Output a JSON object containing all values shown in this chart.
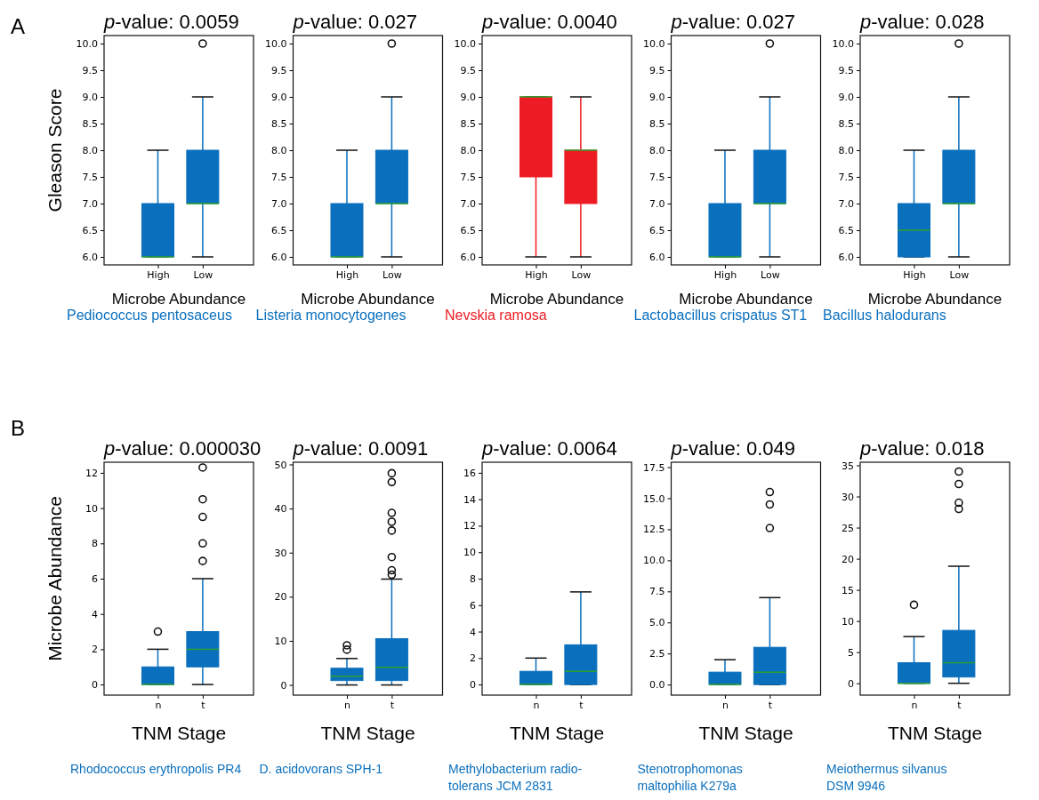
{
  "chart_data": [
    {
      "type": "box",
      "title": "p-value: 0.0059",
      "subtitle": "Pediococcus pentosaceus",
      "xlabel": "Microbe Abundance",
      "ylabel": "Gleason Score",
      "annotations": [
        "A"
      ],
      "categories": [
        "High",
        "Low"
      ],
      "ylim": [
        5.85,
        10.15
      ],
      "yticks": [
        {
          "value": 6,
          "label": "6.0"
        },
        {
          "value": 6.5,
          "label": "6.5"
        },
        {
          "value": 7,
          "label": "7.0"
        },
        {
          "value": 7.5,
          "label": "7.5"
        },
        {
          "value": 8,
          "label": "8.0"
        },
        {
          "value": 8.5,
          "label": "8.5"
        },
        {
          "value": 9,
          "label": "9.0"
        },
        {
          "value": 9.5,
          "label": "9.5"
        },
        {
          "value": 10,
          "label": "10.0"
        }
      ],
      "series": [
        {
          "color": "#0a6fbd",
          "boxes": [
            {
              "low": 6,
              "q1": 6,
              "median": 6,
              "q3": 7,
              "high": 8
            },
            {
              "low": 6,
              "q1": 7,
              "median": 7,
              "q3": 8,
              "high": 9,
              "outliers": [
                10
              ]
            }
          ]
        }
      ]
    },
    {
      "type": "box",
      "title": "p-value: 0.027",
      "subtitle": "Listeria monocytogenes",
      "xlabel": "Microbe Abundance",
      "categories": [
        "High",
        "Low"
      ],
      "ylim": [
        5.85,
        10.15
      ],
      "yticks": [
        {
          "value": 6,
          "label": "6.0"
        },
        {
          "value": 6.5,
          "label": "6.5"
        },
        {
          "value": 7,
          "label": "7.0"
        },
        {
          "value": 7.5,
          "label": "7.5"
        },
        {
          "value": 8,
          "label": "8.0"
        },
        {
          "value": 8.5,
          "label": "8.5"
        },
        {
          "value": 9,
          "label": "9.0"
        },
        {
          "value": 9.5,
          "label": "9.5"
        },
        {
          "value": 10,
          "label": "10.0"
        }
      ],
      "series": [
        {
          "color": "#0a6fbd",
          "boxes": [
            {
              "low": 6,
              "q1": 6,
              "median": 6,
              "q3": 7,
              "high": 8
            },
            {
              "low": 6,
              "q1": 7,
              "median": 7,
              "q3": 8,
              "high": 9,
              "outliers": [
                10
              ]
            }
          ]
        }
      ]
    },
    {
      "type": "box",
      "title": "p-value: 0.0040",
      "subtitle": "Nevskia ramosa",
      "xlabel": "Microbe Abundance",
      "categories": [
        "High",
        "Low"
      ],
      "ylim": [
        5.85,
        10.15
      ],
      "yticks": [
        {
          "value": 6,
          "label": "6.0"
        },
        {
          "value": 6.5,
          "label": "6.5"
        },
        {
          "value": 7,
          "label": "7.0"
        },
        {
          "value": 7.5,
          "label": "7.5"
        },
        {
          "value": 8,
          "label": "8.0"
        },
        {
          "value": 8.5,
          "label": "8.5"
        },
        {
          "value": 9,
          "label": "9.0"
        },
        {
          "value": 9.5,
          "label": "9.5"
        },
        {
          "value": 10,
          "label": "10.0"
        }
      ],
      "series": [
        {
          "color": "#ed1c24",
          "boxes": [
            {
              "low": 6,
              "q1": 7.5,
              "median": 9,
              "q3": 9,
              "high": 9
            },
            {
              "low": 6,
              "q1": 7,
              "median": 8,
              "q3": 8,
              "high": 9
            }
          ]
        }
      ]
    },
    {
      "type": "box",
      "title": "p-value: 0.027",
      "subtitle": "Lactobacillus crispatus ST1",
      "xlabel": "Microbe Abundance",
      "categories": [
        "High",
        "Low"
      ],
      "ylim": [
        5.85,
        10.15
      ],
      "yticks": [
        {
          "value": 6,
          "label": "6.0"
        },
        {
          "value": 6.5,
          "label": "6.5"
        },
        {
          "value": 7,
          "label": "7.0"
        },
        {
          "value": 7.5,
          "label": "7.5"
        },
        {
          "value": 8,
          "label": "8.0"
        },
        {
          "value": 8.5,
          "label": "8.5"
        },
        {
          "value": 9,
          "label": "9.0"
        },
        {
          "value": 9.5,
          "label": "9.5"
        },
        {
          "value": 10,
          "label": "10.0"
        }
      ],
      "series": [
        {
          "color": "#0a6fbd",
          "boxes": [
            {
              "low": 6,
              "q1": 6,
              "median": 6,
              "q3": 7,
              "high": 8
            },
            {
              "low": 6,
              "q1": 7,
              "median": 7,
              "q3": 8,
              "high": 9,
              "outliers": [
                10
              ]
            }
          ]
        }
      ]
    },
    {
      "type": "box",
      "title": "p-value: 0.028",
      "subtitle": "Bacillus halodurans",
      "xlabel": "Microbe Abundance",
      "categories": [
        "High",
        "Low"
      ],
      "ylim": [
        5.85,
        10.15
      ],
      "yticks": [
        {
          "value": 6,
          "label": "6.0"
        },
        {
          "value": 6.5,
          "label": "6.5"
        },
        {
          "value": 7,
          "label": "7.0"
        },
        {
          "value": 7.5,
          "label": "7.5"
        },
        {
          "value": 8,
          "label": "8.0"
        },
        {
          "value": 8.5,
          "label": "8.5"
        },
        {
          "value": 9,
          "label": "9.0"
        },
        {
          "value": 9.5,
          "label": "9.5"
        },
        {
          "value": 10,
          "label": "10.0"
        }
      ],
      "series": [
        {
          "color": "#0a6fbd",
          "boxes": [
            {
              "low": 6,
              "q1": 6,
              "median": 6.5,
              "q3": 7,
              "high": 8
            },
            {
              "low": 6,
              "q1": 7,
              "median": 7,
              "q3": 8,
              "high": 9,
              "outliers": [
                10
              ]
            }
          ]
        }
      ]
    },
    {
      "type": "box",
      "title": "p-value: 0.000030",
      "subtitle": "Rhodococcus erythropolis PR4",
      "xlabel": "TNM Stage",
      "ylabel": "Microbe Abundance",
      "annotations": [
        "B"
      ],
      "categories": [
        "n",
        "t"
      ],
      "ylim": [
        -0.6,
        12.6
      ],
      "yticks": [
        0,
        2,
        4,
        6,
        8,
        10,
        12
      ],
      "series": [
        {
          "color": "#0a6fbd",
          "boxes": [
            {
              "low": 0,
              "q1": 0,
              "median": 0,
              "q3": 1,
              "high": 2,
              "outliers": [
                3
              ]
            },
            {
              "low": 0,
              "q1": 1,
              "median": 2,
              "q3": 3,
              "high": 6,
              "outliers": [
                7,
                8,
                9.5,
                10.5,
                12.3
              ]
            }
          ]
        }
      ]
    },
    {
      "type": "box",
      "title": "p-value: 0.0091",
      "subtitle": "D. acidovorans SPH-1",
      "xlabel": "TNM Stage",
      "categories": [
        "n",
        "t"
      ],
      "ylim": [
        -2.3,
        50.5
      ],
      "yticks": [
        0,
        10,
        20,
        30,
        40,
        50
      ],
      "series": [
        {
          "color": "#0a6fbd",
          "boxes": [
            {
              "low": 0,
              "q1": 1,
              "median": 2,
              "q3": 3.8,
              "high": 6,
              "outliers": [
                8,
                9
              ]
            },
            {
              "low": 0,
              "q1": 1,
              "median": 4,
              "q3": 10.5,
              "high": 24,
              "outliers": [
                25,
                26,
                29,
                35,
                37,
                39,
                46,
                48
              ]
            }
          ]
        }
      ]
    },
    {
      "type": "box",
      "title": "p-value: 0.0064",
      "subtitle": "Methylobacterium radio-\ntolerans JCM 2831",
      "xlabel": "TNM Stage",
      "categories": [
        "n",
        "t"
      ],
      "ylim": [
        -0.8,
        16.8
      ],
      "yticks": [
        0,
        2,
        4,
        6,
        8,
        10,
        12,
        14,
        16
      ],
      "series": [
        {
          "color": "#0a6fbd",
          "boxes": [
            {
              "low": 0,
              "q1": 0,
              "median": 0,
              "q3": 1,
              "high": 2
            },
            {
              "low": 0,
              "q1": 0,
              "median": 1,
              "q3": 3,
              "high": 7
            }
          ]
        }
      ]
    },
    {
      "type": "box",
      "title": "p-value: 0.049",
      "subtitle": "Stenotrophomonas\nmaltophilia K279a",
      "xlabel": "TNM Stage",
      "categories": [
        "n",
        "t"
      ],
      "ylim": [
        -0.85,
        17.9
      ],
      "yticks": [
        {
          "value": 0,
          "label": "0.0"
        },
        {
          "value": 2.5,
          "label": "2.5"
        },
        {
          "value": 5,
          "label": "5.0"
        },
        {
          "value": 7.5,
          "label": "7.5"
        },
        {
          "value": 10,
          "label": "10.0"
        },
        {
          "value": 12.5,
          "label": "12.5"
        },
        {
          "value": 15,
          "label": "15.0"
        },
        {
          "value": 17.5,
          "label": "17.5"
        }
      ],
      "series": [
        {
          "color": "#0a6fbd",
          "boxes": [
            {
              "low": 0,
              "q1": 0,
              "median": 0,
              "q3": 1,
              "high": 2
            },
            {
              "low": 0,
              "q1": 0,
              "median": 1,
              "q3": 3,
              "high": 7,
              "outliers": [
                12.6,
                14.5,
                15.5
              ]
            }
          ]
        }
      ]
    },
    {
      "type": "box",
      "title": "p-value: 0.018",
      "subtitle": "Meiothermus silvanus\nDSM 9946",
      "xlabel": "TNM Stage",
      "categories": [
        "n",
        "t"
      ],
      "ylim": [
        -1.9,
        35.5
      ],
      "yticks": [
        0,
        5,
        10,
        15,
        20,
        25,
        30,
        35
      ],
      "series": [
        {
          "color": "#0a6fbd",
          "boxes": [
            {
              "low": 0,
              "q1": 0,
              "median": 0,
              "q3": 3.3,
              "high": 7.5,
              "outliers": [
                12.6
              ]
            },
            {
              "low": 0,
              "q1": 1,
              "median": 3.3,
              "q3": 8.5,
              "high": 18.8,
              "outliers": [
                28,
                29,
                32,
                34
              ]
            }
          ]
        }
      ]
    }
  ]
}
